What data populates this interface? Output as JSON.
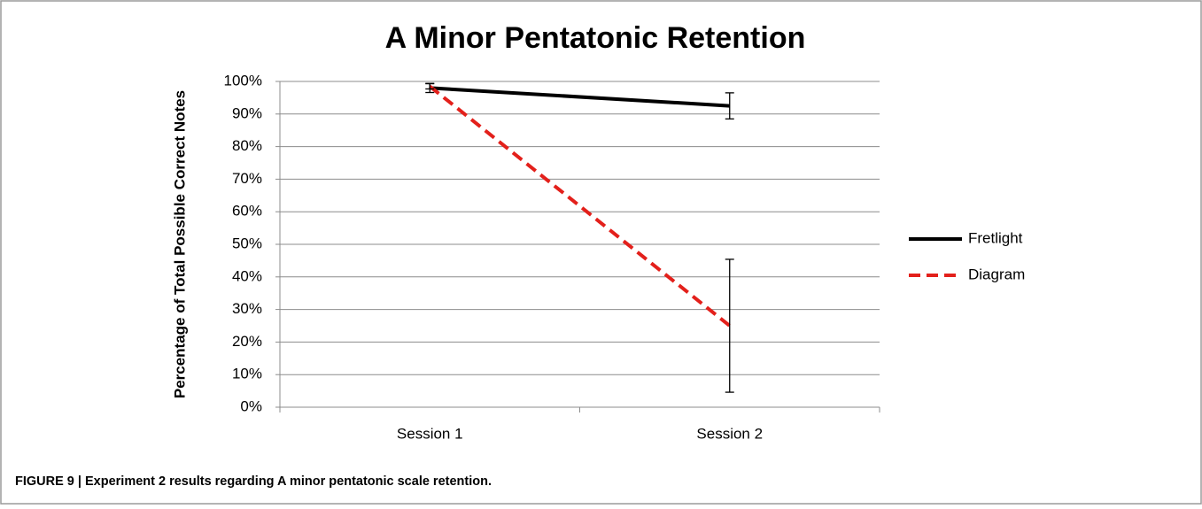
{
  "chart_data": {
    "type": "line",
    "title": "A Minor Pentatonic Retention",
    "y_label": "Percentage of Total Possible Correct Notes",
    "categories": [
      "Session 1",
      "Session 2"
    ],
    "series": [
      {
        "name": "Fretlight",
        "color": "#000000",
        "dashed": false,
        "values": [
          98,
          92.5
        ],
        "errors": [
          1.4,
          4
        ]
      },
      {
        "name": "Diagram",
        "color": "#e3201b",
        "dashed": true,
        "values": [
          98.5,
          25
        ],
        "errors": [
          0.8,
          20.4
        ]
      }
    ],
    "ylim": [
      0,
      100
    ],
    "yticks": [
      {
        "value": 0,
        "label": "0%"
      },
      {
        "value": 10,
        "label": "10%"
      },
      {
        "value": 20,
        "label": "20%"
      },
      {
        "value": 30,
        "label": "30%"
      },
      {
        "value": 40,
        "label": "40%"
      },
      {
        "value": 50,
        "label": "50%"
      },
      {
        "value": 60,
        "label": "60%"
      },
      {
        "value": 70,
        "label": "70%"
      },
      {
        "value": 80,
        "label": "80%"
      },
      {
        "value": 90,
        "label": "90%"
      },
      {
        "value": 100,
        "label": "100%"
      }
    ],
    "grid": true,
    "legend": "right"
  },
  "caption": "FIGURE 9 | Experiment 2 results regarding A minor pentatonic scale retention."
}
